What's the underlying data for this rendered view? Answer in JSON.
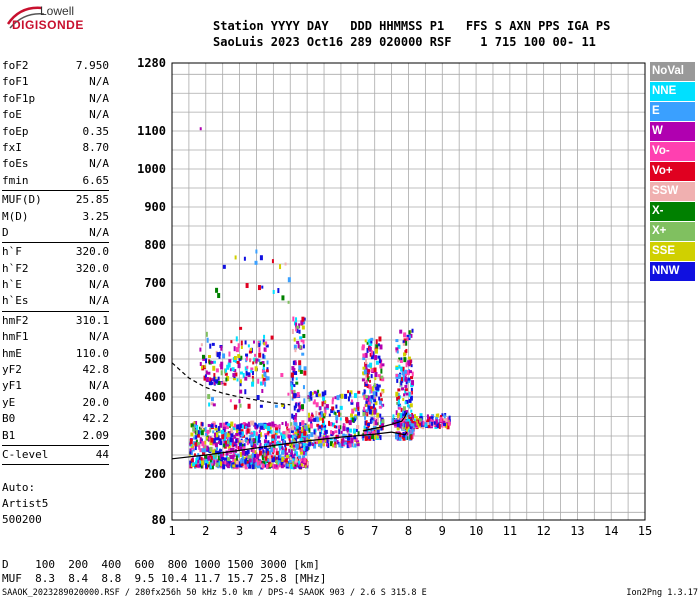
{
  "logo": {
    "line1": "Lowell",
    "line2": "DIGISONDE"
  },
  "header": {
    "line1": "Station YYYY DAY   DDD HHMMSS P1   FFS S AXN PPS IGA PS",
    "line2": "SaoLuis 2023 Oct16 289 020000 RSF    1 715 100 00- 11"
  },
  "params_groups": [
    [
      [
        "foF2",
        "7.950"
      ],
      [
        "foF1",
        "N/A"
      ],
      [
        "foF1p",
        "N/A"
      ],
      [
        "foE",
        "N/A"
      ],
      [
        "foEp",
        "0.35"
      ],
      [
        "fxI",
        "8.70"
      ],
      [
        "foEs",
        "N/A"
      ],
      [
        "fmin",
        "6.65"
      ]
    ],
    [
      [
        "MUF(D)",
        "25.85"
      ],
      [
        "M(D)",
        "3.25"
      ],
      [
        "D",
        "N/A"
      ]
    ],
    [
      [
        "h`F",
        "320.0"
      ],
      [
        "h`F2",
        "320.0"
      ],
      [
        "h`E",
        "N/A"
      ],
      [
        "h`Es",
        "N/A"
      ]
    ],
    [
      [
        "hmF2",
        "310.1"
      ],
      [
        "hmF1",
        "N/A"
      ],
      [
        "hmE",
        "110.0"
      ],
      [
        "yF2",
        "42.8"
      ],
      [
        "yF1",
        "N/A"
      ],
      [
        "yE",
        "20.0"
      ],
      [
        "B0",
        "42.2"
      ],
      [
        "B1",
        "2.09"
      ]
    ],
    [
      [
        "C-level",
        "44"
      ]
    ]
  ],
  "auto": {
    "line1": "Auto:",
    "line2": "Artist5",
    "line3": "500200"
  },
  "legend": [
    {
      "label": "NoVal",
      "color": "#999999"
    },
    {
      "label": "NNE",
      "color": "#00e0ff"
    },
    {
      "label": "E",
      "color": "#3aa0ff"
    },
    {
      "label": "W",
      "color": "#b000b0"
    },
    {
      "label": "Vo-",
      "color": "#ff40b0"
    },
    {
      "label": "Vo+",
      "color": "#e00020"
    },
    {
      "label": "SSW",
      "color": "#f0b0b0"
    },
    {
      "label": "X-",
      "color": "#008000"
    },
    {
      "label": "X+",
      "color": "#80c060"
    },
    {
      "label": "SSE",
      "color": "#d0d000"
    },
    {
      "label": "NNW",
      "color": "#1010e0"
    }
  ],
  "footer": {
    "d_line": "D    100  200  400  600  800 1000 1500 3000 [km]",
    "muf_line": "MUF  8.3  8.4  8.8  9.5 10.4 11.7 15.7 25.8 [MHz]",
    "file_line": "SAAOK_2023289020000.RSF / 280fx256h 50 kHz 5.0 km / DPS-4 SAAOK 903 / 2.6 S 315.8 E",
    "version": "Ion2Png 1.3.17"
  },
  "chart_data": {
    "type": "scatter",
    "title": "",
    "xlabel": "",
    "ylabel": "",
    "xlim": [
      1,
      15
    ],
    "ylim": [
      80,
      1280
    ],
    "x_ticks": [
      1,
      2,
      3,
      4,
      5,
      6,
      7,
      8,
      9,
      10,
      11,
      12,
      13,
      14,
      15
    ],
    "y_ticks": [
      80,
      200,
      300,
      400,
      500,
      600,
      700,
      800,
      900,
      1000,
      1100,
      1280
    ],
    "y_scale": "approx-log",
    "grid": true,
    "traces": [
      {
        "name": "",
        "x": [
          6.65,
          6.9,
          7.2,
          7.5,
          7.8,
          7.9,
          7.95
        ],
        "y": [
          313,
          318,
          323,
          330,
          338,
          350,
          360
        ]
      },
      {
        "name": "",
        "x": [
          1.0,
          2.0,
          3.0,
          4.0,
          5.0,
          6.0,
          7.0,
          7.5,
          7.9,
          7.95
        ],
        "y": [
          240,
          250,
          262,
          275,
          287,
          297,
          305,
          310,
          303,
          310
        ]
      },
      {
        "name": "",
        "x": [
          1.0,
          1.5,
          2.0,
          2.5,
          3.0,
          3.5,
          4.0,
          4.5
        ],
        "y": [
          490,
          450,
          425,
          410,
          400,
          392,
          385,
          380
        ]
      }
    ],
    "echo_clusters": [
      {
        "x_range": [
          1.5,
          5.0
        ],
        "y_range": [
          225,
          340
        ],
        "density": 900
      },
      {
        "x_range": [
          1.8,
          3.8
        ],
        "y_range": [
          440,
          560
        ],
        "density": 140
      },
      {
        "x_range": [
          4.5,
          4.9
        ],
        "y_range": [
          280,
          620
        ],
        "density": 120
      },
      {
        "x_range": [
          5.0,
          6.5
        ],
        "y_range": [
          280,
          420
        ],
        "density": 260
      },
      {
        "x_range": [
          6.6,
          7.2
        ],
        "y_range": [
          300,
          560
        ],
        "density": 220
      },
      {
        "x_range": [
          7.6,
          8.1
        ],
        "y_range": [
          300,
          580
        ],
        "density": 200
      },
      {
        "x_range": [
          7.5,
          9.2
        ],
        "y_range": [
          330,
          360
        ],
        "density": 180
      },
      {
        "x_range": [
          2.0,
          4.5
        ],
        "y_range": [
          380,
          800
        ],
        "density": 60
      }
    ]
  }
}
